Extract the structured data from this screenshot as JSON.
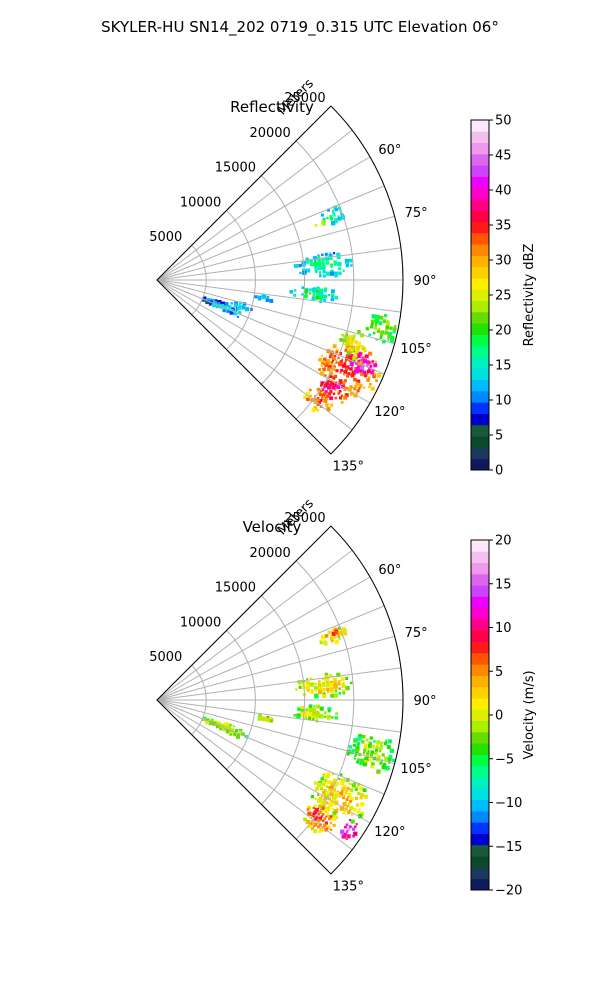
{
  "figure": {
    "title": "SKYLER-HU  SN14_202  0719_0.315 UTC Elevation 06°"
  },
  "chart_data": [
    {
      "type": "heatmap",
      "projection": "polar-sector",
      "title": "Reflectivity",
      "range_label": "Meters",
      "range_ticks": [
        5000,
        10000,
        15000,
        20000,
        25000
      ],
      "range_tick_labels": [
        "5000",
        "10000",
        "15000",
        "20000",
        "25000"
      ],
      "rmax": 25000,
      "azimuth_range_deg": [
        45,
        135
      ],
      "azimuth_ticks_deg": [
        60,
        75,
        90,
        105,
        120,
        135
      ],
      "azimuth_tick_labels": [
        "60°",
        "75°",
        "90°",
        "105°",
        "120°",
        "135°"
      ],
      "grid": true,
      "colorbar": {
        "label": "Reflectivity dBZ",
        "min": 0,
        "max": 50,
        "ticks": [
          0,
          5,
          10,
          15,
          20,
          25,
          30,
          35,
          40,
          45,
          50
        ],
        "tick_labels": [
          "0",
          "5",
          "10",
          "15",
          "20",
          "25",
          "30",
          "35",
          "40",
          "45",
          "50"
        ],
        "colors": [
          "#0d1a5e",
          "#1a3a5c",
          "#0a4a2a",
          "#1a5a3a",
          "#0000cc",
          "#0033ff",
          "#0088ff",
          "#00bbff",
          "#00e0e0",
          "#00f0c0",
          "#00ff88",
          "#00ff44",
          "#22e000",
          "#66dd00",
          "#aaee00",
          "#ddee00",
          "#ffee00",
          "#ffd000",
          "#ffb000",
          "#ff8800",
          "#ff5500",
          "#ff1a1a",
          "#ff0044",
          "#ff0088",
          "#ff00cc",
          "#ee00ff",
          "#cc44ff",
          "#dd66ee",
          "#ee99ee",
          "#f5c0f0",
          "#fde8fa"
        ]
      },
      "echo_regions": [
        {
          "az_center": 115,
          "r_center": 21500,
          "az_width": 14,
          "r_width": 6500,
          "value": 34
        },
        {
          "az_center": 112,
          "r_center": 22500,
          "az_width": 6,
          "r_width": 3000,
          "value": 42
        },
        {
          "az_center": 122,
          "r_center": 21000,
          "az_width": 8,
          "r_width": 3500,
          "value": 37
        },
        {
          "az_center": 127,
          "r_center": 20500,
          "az_width": 6,
          "r_width": 3000,
          "value": 33
        },
        {
          "az_center": 102,
          "r_center": 23500,
          "az_width": 7,
          "r_width": 3500,
          "value": 22
        },
        {
          "az_center": 108,
          "r_center": 21000,
          "az_width": 8,
          "r_width": 3000,
          "value": 27
        },
        {
          "az_center": 95,
          "r_center": 16000,
          "az_width": 6,
          "r_width": 5000,
          "value": 18
        },
        {
          "az_center": 85,
          "r_center": 17000,
          "az_width": 8,
          "r_width": 6000,
          "value": 17
        },
        {
          "az_center": 70,
          "r_center": 19000,
          "az_width": 5,
          "r_width": 3000,
          "value": 17
        },
        {
          "az_center": 71,
          "r_center": 17500,
          "az_width": 2,
          "r_width": 1200,
          "value": 26
        },
        {
          "az_center": 112,
          "r_center": 7500,
          "az_width": 7,
          "r_width": 5000,
          "value": 13
        },
        {
          "az_center": 107,
          "r_center": 9000,
          "az_width": 4,
          "r_width": 2500,
          "value": 15
        },
        {
          "az_center": 100,
          "r_center": 11000,
          "az_width": 3,
          "r_width": 2000,
          "value": 14
        }
      ]
    },
    {
      "type": "heatmap",
      "projection": "polar-sector",
      "title": "Velocity",
      "range_label": "Meters",
      "range_ticks": [
        5000,
        10000,
        15000,
        20000,
        25000
      ],
      "range_tick_labels": [
        "5000",
        "10000",
        "15000",
        "20000",
        "25000"
      ],
      "rmax": 25000,
      "azimuth_range_deg": [
        45,
        135
      ],
      "azimuth_ticks_deg": [
        60,
        75,
        90,
        105,
        120,
        135
      ],
      "azimuth_tick_labels": [
        "60°",
        "75°",
        "90°",
        "105°",
        "120°",
        "135°"
      ],
      "grid": true,
      "colorbar": {
        "label": "Velocity (m/s)",
        "min": -20,
        "max": 20,
        "ticks": [
          -20,
          -15,
          -10,
          -5,
          0,
          5,
          10,
          15,
          20
        ],
        "tick_labels": [
          "−20",
          "−15",
          "−10",
          "−5",
          "0",
          "5",
          "10",
          "15",
          "20"
        ],
        "colors": [
          "#0d1a5e",
          "#1a3a5c",
          "#0a4a2a",
          "#1a5a3a",
          "#0000cc",
          "#0033ff",
          "#0088ff",
          "#00bbff",
          "#00e0e0",
          "#00f0c0",
          "#00ff88",
          "#00ff44",
          "#22e000",
          "#66dd00",
          "#aaee00",
          "#ddee00",
          "#ffee00",
          "#ffd000",
          "#ffb000",
          "#ff8800",
          "#ff5500",
          "#ff1a1a",
          "#ff0044",
          "#ff0088",
          "#ff00cc",
          "#ee00ff",
          "#cc44ff",
          "#dd66ee",
          "#ee99ee",
          "#f5c0f0",
          "#fde8fa"
        ]
      },
      "echo_regions": [
        {
          "az_center": 118,
          "r_center": 21000,
          "az_width": 14,
          "r_width": 6000,
          "value": 3
        },
        {
          "az_center": 126,
          "r_center": 20500,
          "az_width": 8,
          "r_width": 3500,
          "value": 7
        },
        {
          "az_center": 124,
          "r_center": 23500,
          "az_width": 5,
          "r_width": 2000,
          "value": 14
        },
        {
          "az_center": 104,
          "r_center": 22500,
          "az_width": 10,
          "r_width": 5000,
          "value": -1
        },
        {
          "az_center": 95,
          "r_center": 16000,
          "az_width": 6,
          "r_width": 5000,
          "value": 1
        },
        {
          "az_center": 85,
          "r_center": 17000,
          "az_width": 8,
          "r_width": 6000,
          "value": 2
        },
        {
          "az_center": 70,
          "r_center": 19000,
          "az_width": 5,
          "r_width": 3000,
          "value": 4
        },
        {
          "az_center": 69,
          "r_center": 19500,
          "az_width": 1.5,
          "r_width": 1000,
          "value": 9
        },
        {
          "az_center": 112,
          "r_center": 7500,
          "az_width": 7,
          "r_width": 5000,
          "value": 1
        },
        {
          "az_center": 100,
          "r_center": 11000,
          "az_width": 3,
          "r_width": 2000,
          "value": 2
        }
      ]
    }
  ]
}
